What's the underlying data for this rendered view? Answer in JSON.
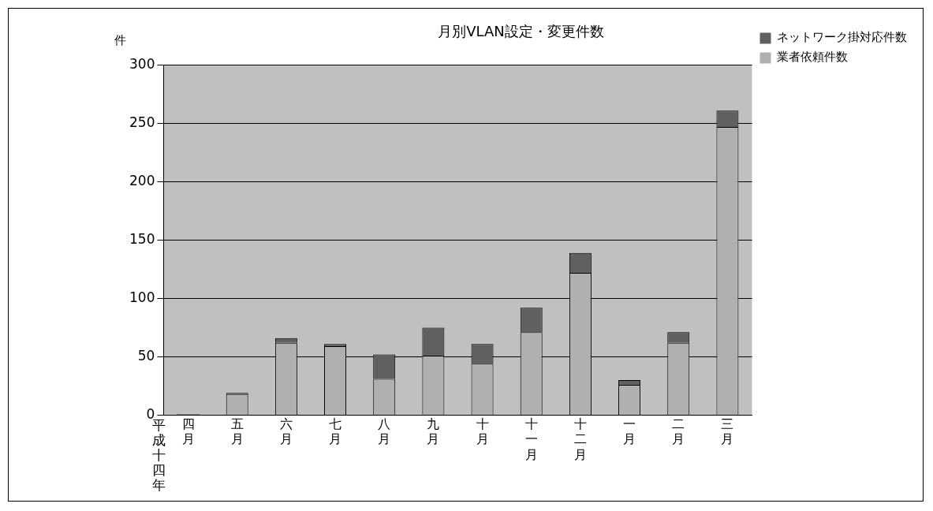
{
  "chart_data": {
    "type": "bar",
    "stacked": true,
    "title": "月別VLAN設定・変更件数",
    "ylabel": "件",
    "xlabel": "平成十四年",
    "categories": [
      "四月",
      "五月",
      "六月",
      "七月",
      "八月",
      "九月",
      "十月",
      "十一月",
      "十二月",
      "一月",
      "二月",
      "三月"
    ],
    "series": [
      {
        "name": "業者依頼件数",
        "color": "#b0b0b0",
        "values": [
          1,
          18,
          62,
          59,
          31,
          51,
          44,
          71,
          122,
          26,
          62,
          247
        ]
      },
      {
        "name": "ネットワーク掛対応件数",
        "color": "#606060",
        "values": [
          0,
          1,
          4,
          2,
          21,
          24,
          17,
          21,
          17,
          4,
          9,
          14
        ]
      }
    ],
    "ylim": [
      0,
      300
    ],
    "yticks": [
      0,
      50,
      100,
      150,
      200,
      250,
      300
    ],
    "grid": "y",
    "legend": "top right"
  }
}
